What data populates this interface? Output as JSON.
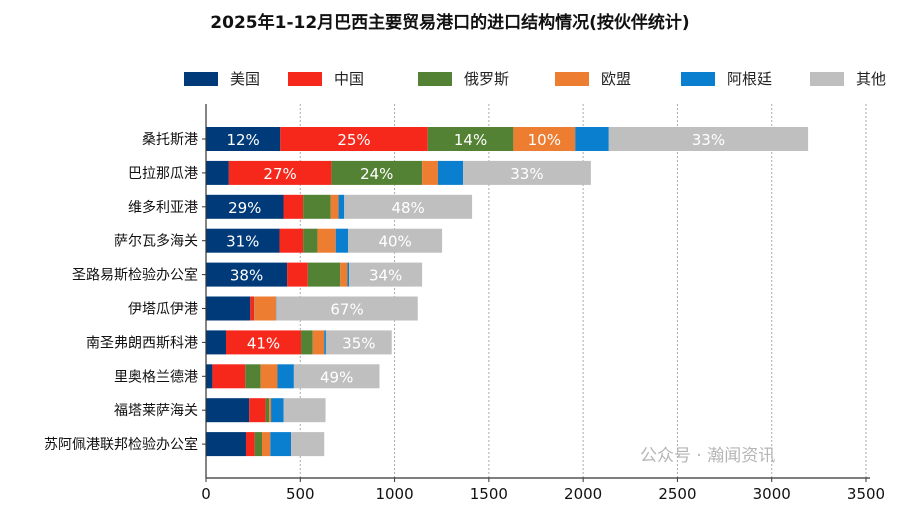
{
  "chart_data": {
    "type": "bar",
    "orientation": "horizontal",
    "stacked": true,
    "title": "2025年1-12月巴西主要贸易港口的进口结构情况(按伙伴统计)",
    "xlabel": "",
    "ylabel": "",
    "xlim": [
      0,
      3500
    ],
    "xticks": [
      0,
      500,
      1000,
      1500,
      2000,
      2500,
      3000,
      3500
    ],
    "grid": "vertical dotted",
    "legend_position": "top",
    "categories": [
      "桑托斯港",
      "巴拉那瓜港",
      "维多利亚港",
      "萨尔瓦多海关",
      "圣路易斯检验办公室",
      "伊塔瓜伊港",
      "南圣弗朗西斯科港",
      "里奥格兰德港",
      "福塔莱萨海关",
      "苏阿佩港联邦检验办公室"
    ],
    "series": [
      {
        "name": "美国",
        "color": "#003a78",
        "values": [
          394,
          121,
          411,
          390,
          430,
          235,
          106,
          34,
          229,
          212
        ],
        "labels": [
          "12%",
          "",
          "29%",
          "31%",
          "38%",
          "",
          "",
          "",
          "",
          ""
        ]
      },
      {
        "name": "中国",
        "color": "#f5281b",
        "values": [
          782,
          544,
          104,
          125,
          110,
          21,
          398,
          174,
          87,
          46
        ],
        "labels": [
          "25%",
          "27%",
          "",
          "",
          "",
          "",
          "41%",
          "",
          "",
          ""
        ]
      },
      {
        "name": "俄罗斯",
        "color": "#548235",
        "values": [
          454,
          481,
          146,
          76,
          172,
          2,
          62,
          82,
          19,
          39
        ],
        "labels": [
          "14%",
          "24%",
          "",
          "",
          "",
          "",
          "",
          "",
          "",
          ""
        ]
      },
      {
        "name": "欧盟",
        "color": "#ed7d31",
        "values": [
          328,
          84,
          42,
          97,
          38,
          113,
          61,
          89,
          10,
          44
        ],
        "labels": [
          "10%",
          "",
          "",
          "",
          "",
          "",
          "",
          "",
          "",
          ""
        ]
      },
      {
        "name": "阿根廷",
        "color": "#0a7fd0",
        "values": [
          178,
          133,
          30,
          66,
          9,
          2,
          9,
          87,
          66,
          110
        ],
        "labels": [
          "",
          "",
          "",
          "",
          "",
          "",
          "",
          "",
          "",
          ""
        ]
      },
      {
        "name": "其他",
        "color": "#bfbfbf",
        "values": [
          1057,
          678,
          678,
          498,
          387,
          750,
          349,
          454,
          223,
          176
        ],
        "labels": [
          "33%",
          "33%",
          "48%",
          "40%",
          "34%",
          "67%",
          "35%",
          "49%",
          "",
          ""
        ]
      }
    ]
  },
  "watermark": "公众号 · 瀚闻资讯"
}
